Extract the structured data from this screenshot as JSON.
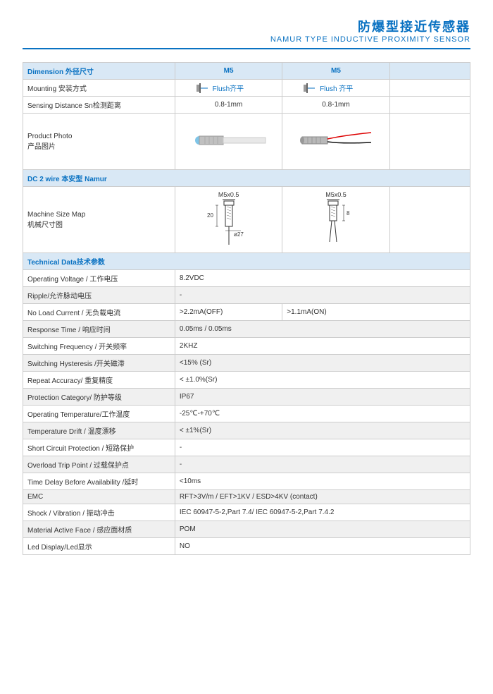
{
  "header": {
    "title_cn": "防爆型接近传感器",
    "title_en": "NAMUR TYPE  INDUCTIVE PROXIMITY SENSOR"
  },
  "dimension": {
    "label": "Dimension  外径尺寸",
    "col1": "M5",
    "col2": "M5"
  },
  "mounting": {
    "label": "Mounting  安装方式",
    "flush1": "Flush齐平",
    "flush2": "Flush 齐平"
  },
  "sensing": {
    "label": "Sensing Distance Sn检测距离",
    "v1": "0.8-1mm",
    "v2": "0.8-1mm"
  },
  "photo": {
    "label": "Product Photo\n产品图片"
  },
  "dc2wire": {
    "label": "DC 2 wire  本安型 Namur"
  },
  "machine": {
    "label": "Machine Size Map\n机械尺寸图",
    "thread": "M5x0.5",
    "dim1a": "20",
    "dim1b": "ø27",
    "dim2a": "8"
  },
  "tech_header": "Technical Data技术参数",
  "tech": [
    {
      "label": "Operating Voltage / 工作电压",
      "v": "8.2VDC",
      "alt": false
    },
    {
      "label": "Ripple/允许脉动电压",
      "v": "-",
      "alt": true
    },
    {
      "label": "No Load Current / 无负载电流",
      "v1": ">2.2mA(OFF)",
      "v2": ">1.1mA(ON)",
      "alt": false,
      "split": true
    },
    {
      "label": "Response Time / 响应时间",
      "v": "0.05ms / 0.05ms",
      "alt": true
    },
    {
      "label": "Switching Frequency / 开关频率",
      "v": "2KHZ",
      "alt": false
    },
    {
      "label": "Switching Hysteresis /开关磁滞",
      "v": "<15% (Sr)",
      "alt": true
    },
    {
      "label": "Repeat Accuracy/ 重复精度",
      "v": "< ±1.0%(Sr)",
      "alt": false
    },
    {
      "label": "Protection Category/ 防护等级",
      "v": "IP67",
      "alt": true
    },
    {
      "label": "Operating Temperature/工作温度",
      "v": "-25℃-+70℃",
      "alt": false
    },
    {
      "label": "Temperature Drift / 温度漂移",
      "v": "< ±1%(Sr)",
      "alt": true
    },
    {
      "label": "Short Circuit Protection / 短路保护",
      "v": "-",
      "alt": false
    },
    {
      "label": "Overload Trip Point / 过载保护点",
      "v": "-",
      "alt": true
    },
    {
      "label": "Time Delay Before Availability /延时",
      "v": "<10ms",
      "alt": false
    },
    {
      "label": "EMC",
      "v": "RFT>3V/m / EFT>1KV / ESD>4KV (contact)",
      "alt": true
    },
    {
      "label": "Shock / Vibration / 振动冲击",
      "v": "IEC 60947-5-2,Part 7.4/ IEC 60947-5-2,Part 7.4.2",
      "alt": false
    },
    {
      "label": "Material Active Face / 感应面材质",
      "v": "POM",
      "alt": true
    },
    {
      "label": "Led Display/Led显示",
      "v": "NO",
      "alt": false
    }
  ]
}
